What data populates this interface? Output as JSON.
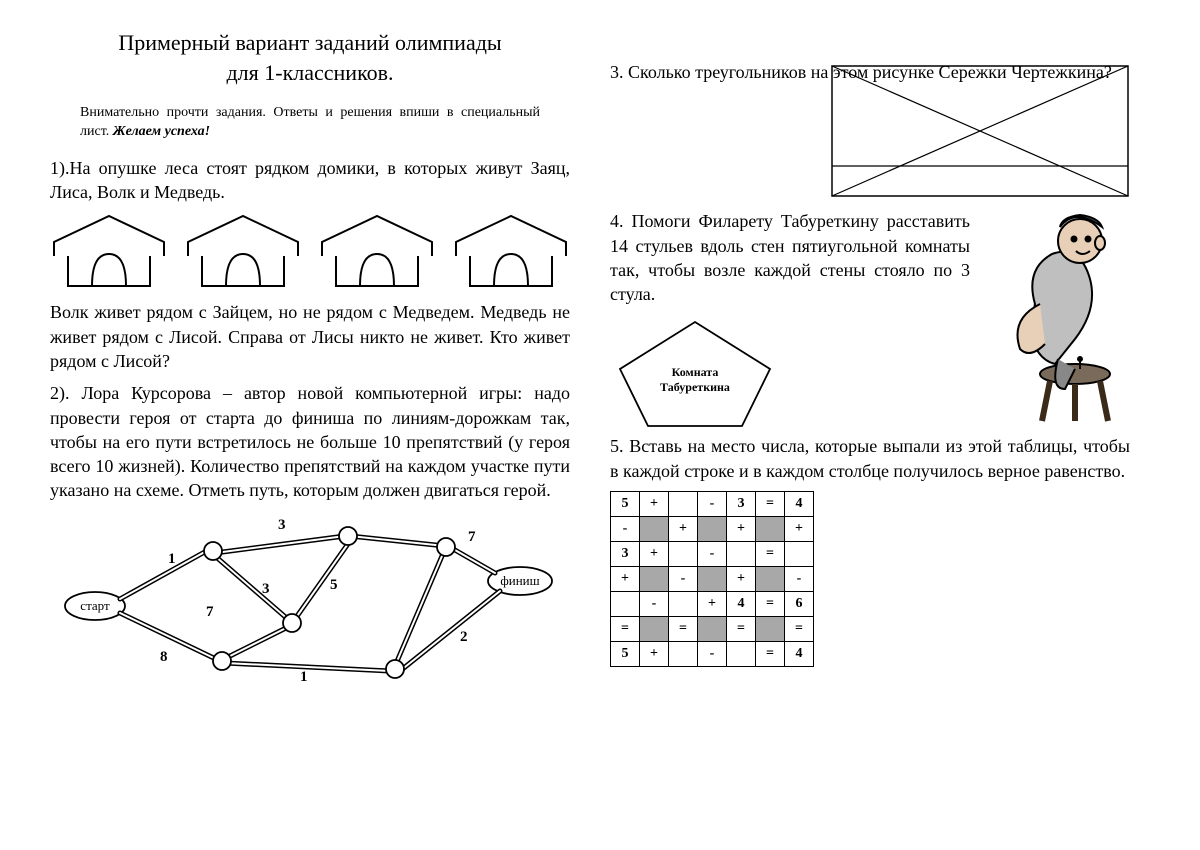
{
  "title_line1": "Примерный вариант заданий олимпиады",
  "title_line2": "для 1-классников.",
  "instructions_pre": "Внимательно прочти задания. Ответы и решения  впиши в специальный лист.  ",
  "instructions_wish": "Желаем успеха!",
  "task1_a": "1).На опушке леса стоят рядком домики, в которых живут Заяц, Лиса, Волк и Медведь.",
  "task1_b": "Волк живет рядом с Зайцем, но не рядом с Медведем. Медведь не живет рядом с Лисой. Справа от Лисы никто не живет. Кто живет рядом с Лисой?",
  "task2": "2). Лора Курсорова – автор новой компьютерной игры: надо провести героя от старта до финиша по линиям-дорожкам так, чтобы на его пути встретилось не больше 10 препятствий (у героя всего 10 жизней). Количество препятствий на каждом участке пути указано на схеме. Отметь путь, которым должен двигаться герой.",
  "task3_a": "3. Сколько треугольников на этом рисунке Сережки Чертежкина?",
  "task4_a": "4. Помоги Филарету Табуреткину расставить 14 стульев вдоль стен пятиугольной комнаты так, чтобы возле каждой стены стояло по 3 стула.",
  "pentagon_label1": "Комната",
  "pentagon_label2": "Табуреткина",
  "task5": "5. Вставь на место числа, которые выпали из этой таблицы, чтобы в каждой строке и в каждом столбце получилось верное равенство.",
  "graph": {
    "start": "старт",
    "finish": "финиш",
    "w1": "1",
    "w3a": "3",
    "w3b": "3",
    "w5": "5",
    "w7a": "7",
    "w7b": "7",
    "w8": "8",
    "w1b": "1",
    "w2": "2"
  },
  "grid": {
    "rows": [
      [
        "5",
        "+",
        "",
        "-",
        "3",
        "=",
        "4"
      ],
      [
        "-",
        "F",
        "+",
        "F",
        "+",
        "F",
        "+"
      ],
      [
        "3",
        "+",
        "",
        "-",
        "",
        "=",
        ""
      ],
      [
        "+",
        "F",
        "-",
        "F",
        "+",
        "F",
        "-"
      ],
      [
        "",
        "-",
        "",
        "+",
        "4",
        "=",
        "6"
      ],
      [
        "=",
        "F",
        "=",
        "F",
        "=",
        "F",
        "="
      ],
      [
        "5",
        "+",
        "",
        "-",
        "",
        "=",
        "4"
      ]
    ]
  }
}
